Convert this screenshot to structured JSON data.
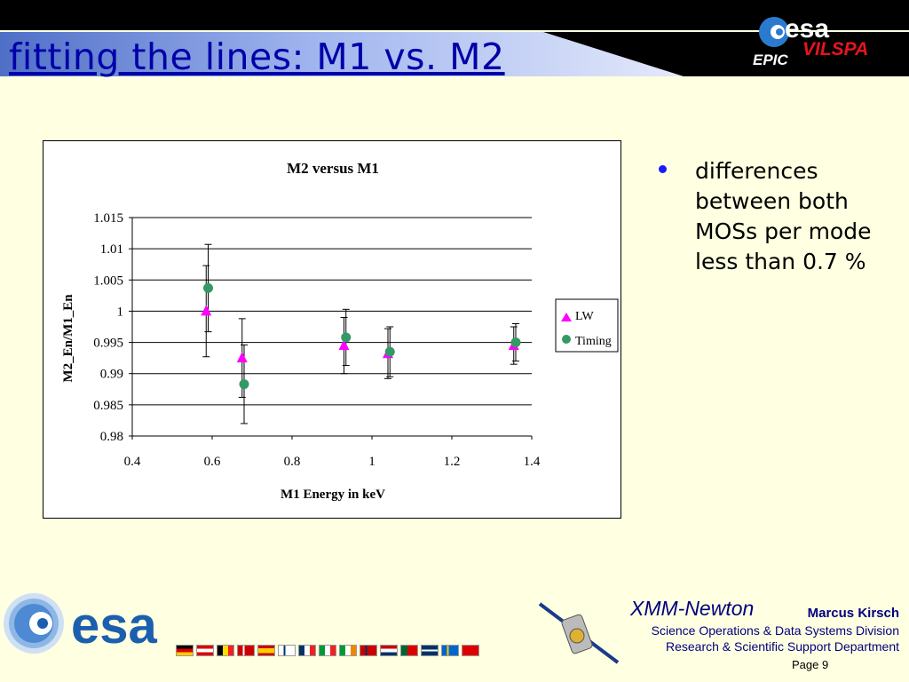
{
  "slide": {
    "title": "fitting the lines: M1 vs. M2",
    "bullets": [
      "differences between both MOSs per mode less than 0.7 %"
    ]
  },
  "header_logo": {
    "org": "esa",
    "site": "VILSPA",
    "instrument": "EPIC"
  },
  "footer": {
    "mission": "XMM-Newton",
    "author": "Marcus Kirsch",
    "division": "Science Operations & Data Systems Division",
    "department": "Research & Scientific Support Department",
    "page": "Page 9",
    "org": "esa"
  },
  "colors": {
    "title": "#0000aa",
    "background": "#ffffe1",
    "text_blue": "#000080",
    "lw": "#ff00ff",
    "timing": "#339966",
    "bullet": "#1a1aff",
    "esa_blue": "#1b5fae"
  },
  "chart_data": {
    "type": "scatter",
    "title": "M2 versus M1",
    "xlabel": "M1 Energy in keV",
    "ylabel": "M2_En/M1_En",
    "xlim": [
      0.4,
      1.4
    ],
    "ylim": [
      0.98,
      1.015
    ],
    "x_ticks": [
      "0.4",
      "0.6",
      "0.8",
      "1",
      "1.2",
      "1.4"
    ],
    "y_ticks": [
      "1.015",
      "1.01",
      "1.005",
      "1",
      "0.995",
      "0.99",
      "0.985",
      "0.98"
    ],
    "grid": "horizontal",
    "legend": "right",
    "series": [
      {
        "name": "LW",
        "marker": "triangle",
        "color": "#ff00ff",
        "points": [
          {
            "x": 0.585,
            "y": 1.0,
            "err": 0.0073
          },
          {
            "x": 0.675,
            "y": 0.9925,
            "err": 0.0063
          },
          {
            "x": 0.93,
            "y": 0.9945,
            "err": 0.0045
          },
          {
            "x": 1.04,
            "y": 0.9932,
            "err": 0.004
          },
          {
            "x": 1.355,
            "y": 0.9945,
            "err": 0.003
          }
        ]
      },
      {
        "name": "Timing",
        "marker": "circle",
        "color": "#339966",
        "points": [
          {
            "x": 0.59,
            "y": 1.0037,
            "err": 0.007
          },
          {
            "x": 0.68,
            "y": 0.9883,
            "err": 0.0063
          },
          {
            "x": 0.935,
            "y": 0.9958,
            "err": 0.0045
          },
          {
            "x": 1.045,
            "y": 0.9935,
            "err": 0.004
          },
          {
            "x": 1.36,
            "y": 0.995,
            "err": 0.003
          }
        ]
      }
    ]
  }
}
